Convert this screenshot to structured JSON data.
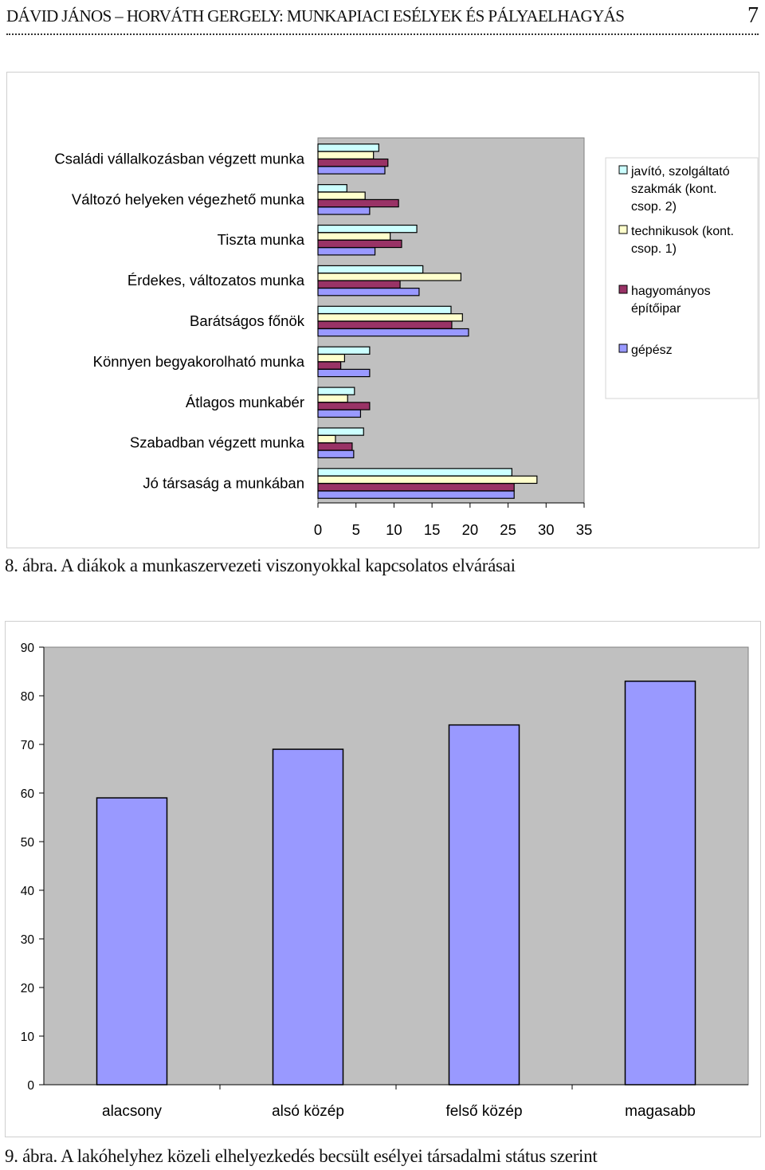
{
  "header": {
    "title": "DÁVID JÁNOS – HORVÁTH GERGELY: MUNKAPIACI ESÉLYEK ÉS PÁLYAELHAGYÁS",
    "page_number": "7"
  },
  "colors": {
    "series": [
      "#ccffff",
      "#ffffcc",
      "#993366",
      "#9999ff"
    ],
    "plot_bg": "#c0c0c0",
    "bar_stroke": "#000000"
  },
  "chart_data": [
    {
      "type": "bar",
      "orientation": "horizontal",
      "caption": "8. ábra. A diákok a munkaszervezeti viszonyokkal kapcsolatos elvárásai",
      "categories": [
        "Családi vállalkozásban végzett munka",
        "Változó helyeken végezhető munka",
        "Tiszta munka",
        "Érdekes, változatos munka",
        "Barátságos főnök",
        "Könnyen begyakorolható munka",
        "Átlagos munkabér",
        "Szabadban végzett munka",
        "Jó társaság a munkában"
      ],
      "series": [
        {
          "name": "javító, szolgáltató szakmák (kont. csop. 2)",
          "values": [
            8,
            3.8,
            13,
            13.8,
            17.5,
            6.8,
            4.8,
            6,
            25.5
          ]
        },
        {
          "name": "technikusok (kont. csop. 1)",
          "values": [
            7.3,
            6.2,
            9.5,
            18.8,
            19,
            3.5,
            3.9,
            2.3,
            28.8
          ]
        },
        {
          "name": "hagyományos építőipar",
          "values": [
            9.2,
            10.6,
            11,
            10.8,
            17.6,
            3,
            6.8,
            4.5,
            25.8
          ]
        },
        {
          "name": "gépész",
          "values": [
            8.8,
            6.8,
            7.5,
            13.3,
            19.8,
            6.8,
            5.6,
            4.7,
            25.8
          ]
        }
      ],
      "xlim": [
        0,
        35
      ],
      "xticks": [
        0,
        5,
        10,
        15,
        20,
        25,
        30,
        35
      ],
      "grid": false,
      "legend": "right"
    },
    {
      "type": "bar",
      "caption": "9. ábra. A lakóhelyhez közeli elhelyezkedés becsült esélyei társadalmi státus szerint",
      "categories": [
        "alacsony",
        "alsó közép",
        "felső közép",
        "magasabb"
      ],
      "values": [
        59,
        69,
        74,
        83
      ],
      "ylim": [
        0,
        90
      ],
      "yticks": [
        0,
        10,
        20,
        30,
        40,
        50,
        60,
        70,
        80,
        90
      ],
      "grid": false,
      "legend": "none"
    }
  ]
}
